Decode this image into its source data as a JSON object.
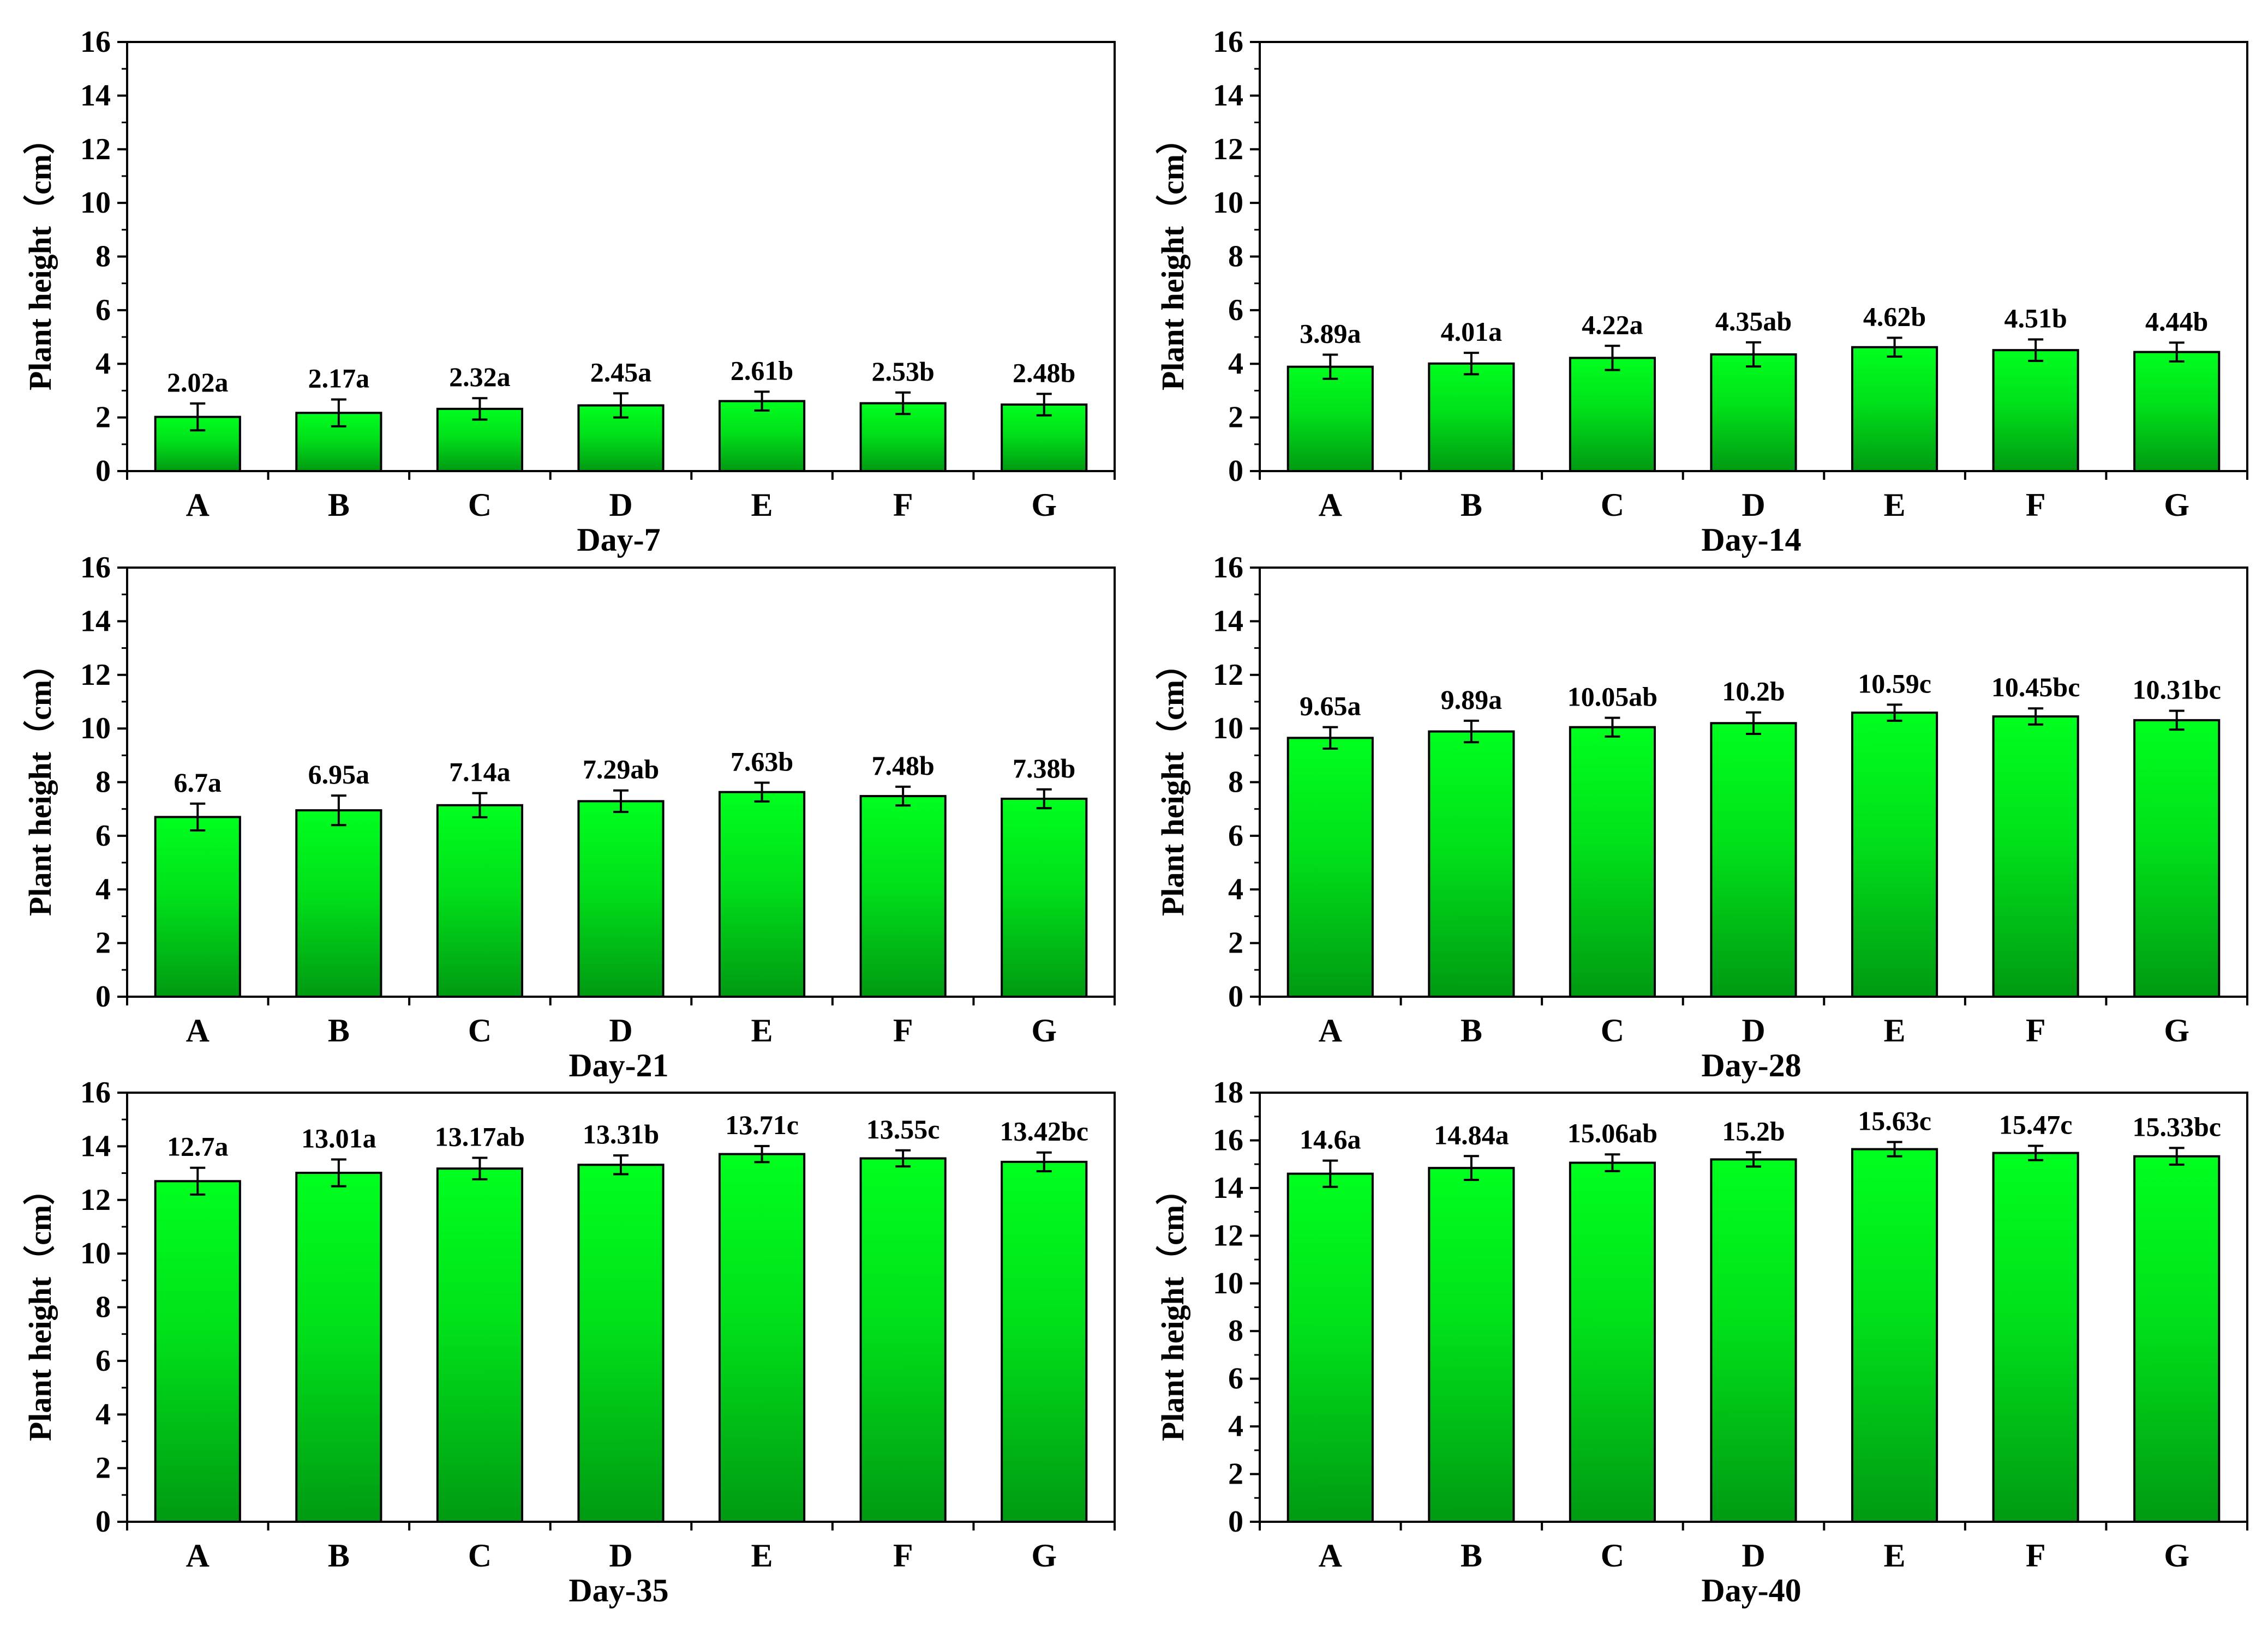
{
  "colors": {
    "bar_top": "#00ff1e",
    "bar_bottom": "#009a12",
    "bar_edge": "#000000",
    "axis": "#000000"
  },
  "chart_data": [
    {
      "type": "bar",
      "title": "Day-7",
      "ylabel": "Plant height（cm）",
      "xlabel": "",
      "categories": [
        "A",
        "B",
        "C",
        "D",
        "E",
        "F",
        "G"
      ],
      "values": [
        2.02,
        2.17,
        2.32,
        2.45,
        2.61,
        2.53,
        2.48
      ],
      "errors": [
        0.5,
        0.5,
        0.4,
        0.45,
        0.35,
        0.4,
        0.4
      ],
      "labels": [
        "2.02a",
        "2.17a",
        "2.32a",
        "2.45a",
        "2.61b",
        "2.53b",
        "2.48b"
      ],
      "ylim": [
        0,
        16
      ],
      "yticks": [
        0,
        2,
        4,
        6,
        8,
        10,
        12,
        14,
        16
      ],
      "grid": false
    },
    {
      "type": "bar",
      "title": "Day-14",
      "ylabel": "Plant height（cm）",
      "xlabel": "",
      "categories": [
        "A",
        "B",
        "C",
        "D",
        "E",
        "F",
        "G"
      ],
      "values": [
        3.89,
        4.01,
        4.22,
        4.35,
        4.62,
        4.51,
        4.44
      ],
      "errors": [
        0.45,
        0.4,
        0.45,
        0.45,
        0.35,
        0.4,
        0.35
      ],
      "labels": [
        "3.89a",
        "4.01a",
        "4.22a",
        "4.35ab",
        "4.62b",
        "4.51b",
        "4.44b"
      ],
      "ylim": [
        0,
        16
      ],
      "yticks": [
        0,
        2,
        4,
        6,
        8,
        10,
        12,
        14,
        16
      ],
      "grid": false
    },
    {
      "type": "bar",
      "title": "Day-21",
      "ylabel": "Plant height（cm）",
      "xlabel": "",
      "categories": [
        "A",
        "B",
        "C",
        "D",
        "E",
        "F",
        "G"
      ],
      "values": [
        6.7,
        6.95,
        7.14,
        7.29,
        7.63,
        7.48,
        7.38
      ],
      "errors": [
        0.5,
        0.55,
        0.45,
        0.4,
        0.35,
        0.35,
        0.35
      ],
      "labels": [
        "6.7a",
        "6.95a",
        "7.14a",
        "7.29ab",
        "7.63b",
        "7.48b",
        "7.38b"
      ],
      "ylim": [
        0,
        16
      ],
      "yticks": [
        0,
        2,
        4,
        6,
        8,
        10,
        12,
        14,
        16
      ],
      "grid": false
    },
    {
      "type": "bar",
      "title": "Day-28",
      "ylabel": "Plant height（cm）",
      "xlabel": "",
      "categories": [
        "A",
        "B",
        "C",
        "D",
        "E",
        "F",
        "G"
      ],
      "values": [
        9.65,
        9.89,
        10.05,
        10.2,
        10.59,
        10.45,
        10.31
      ],
      "errors": [
        0.4,
        0.4,
        0.35,
        0.4,
        0.3,
        0.3,
        0.35
      ],
      "labels": [
        "9.65a",
        "9.89a",
        "10.05ab",
        "10.2b",
        "10.59c",
        "10.45bc",
        "10.31bc"
      ],
      "ylim": [
        0,
        16
      ],
      "yticks": [
        0,
        2,
        4,
        6,
        8,
        10,
        12,
        14,
        16
      ],
      "grid": false
    },
    {
      "type": "bar",
      "title": "Day-35",
      "ylabel": "Plant height（cm）",
      "xlabel": "",
      "categories": [
        "A",
        "B",
        "C",
        "D",
        "E",
        "F",
        "G"
      ],
      "values": [
        12.7,
        13.01,
        13.17,
        13.31,
        13.71,
        13.55,
        13.42
      ],
      "errors": [
        0.5,
        0.5,
        0.4,
        0.35,
        0.3,
        0.3,
        0.35
      ],
      "labels": [
        "12.7a",
        "13.01a",
        "13.17ab",
        "13.31b",
        "13.71c",
        "13.55c",
        "13.42bc"
      ],
      "ylim": [
        0,
        16
      ],
      "yticks": [
        0,
        2,
        4,
        6,
        8,
        10,
        12,
        14,
        16
      ],
      "grid": false
    },
    {
      "type": "bar",
      "title": "Day-40",
      "ylabel": "Plant height（cm）",
      "xlabel": "",
      "categories": [
        "A",
        "B",
        "C",
        "D",
        "E",
        "F",
        "G"
      ],
      "values": [
        14.6,
        14.84,
        15.06,
        15.2,
        15.63,
        15.47,
        15.33
      ],
      "errors": [
        0.55,
        0.5,
        0.35,
        0.3,
        0.3,
        0.3,
        0.35
      ],
      "labels": [
        "14.6a",
        "14.84a",
        "15.06ab",
        "15.2b",
        "15.63c",
        "15.47c",
        "15.33bc"
      ],
      "ylim": [
        0,
        18
      ],
      "yticks": [
        0,
        2,
        4,
        6,
        8,
        10,
        12,
        14,
        16,
        18
      ],
      "grid": false
    }
  ]
}
